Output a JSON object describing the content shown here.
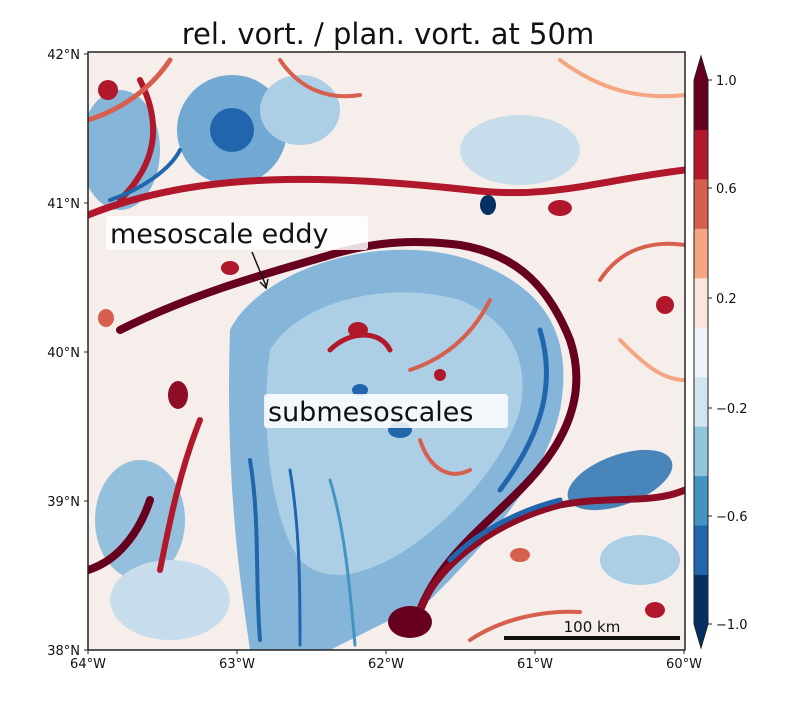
{
  "map": {
    "title": "rel. vort. / plan. vort. at 50m",
    "lat_labels": [
      "42°N",
      "41°N",
      "40°N",
      "39°N",
      "38°N"
    ],
    "lon_labels": [
      "64°W",
      "63°W",
      "62°W",
      "61°W",
      "60°W"
    ],
    "annotations": {
      "eddy": "mesoscale eddy",
      "submeso": "submesoscales"
    },
    "scale_bar": "100 km"
  },
  "colorbar": {
    "tick_labels": [
      "1.0",
      "0.6",
      "0.2",
      "−0.2",
      "−0.6",
      "−1.0"
    ],
    "colors": [
      "#053061",
      "#2166ac",
      "#4393c3",
      "#92c5de",
      "#d1e5f0",
      "#f0f4f8",
      "#fbe6dc",
      "#f4a582",
      "#d6604d",
      "#b2182b",
      "#67001f"
    ]
  }
}
